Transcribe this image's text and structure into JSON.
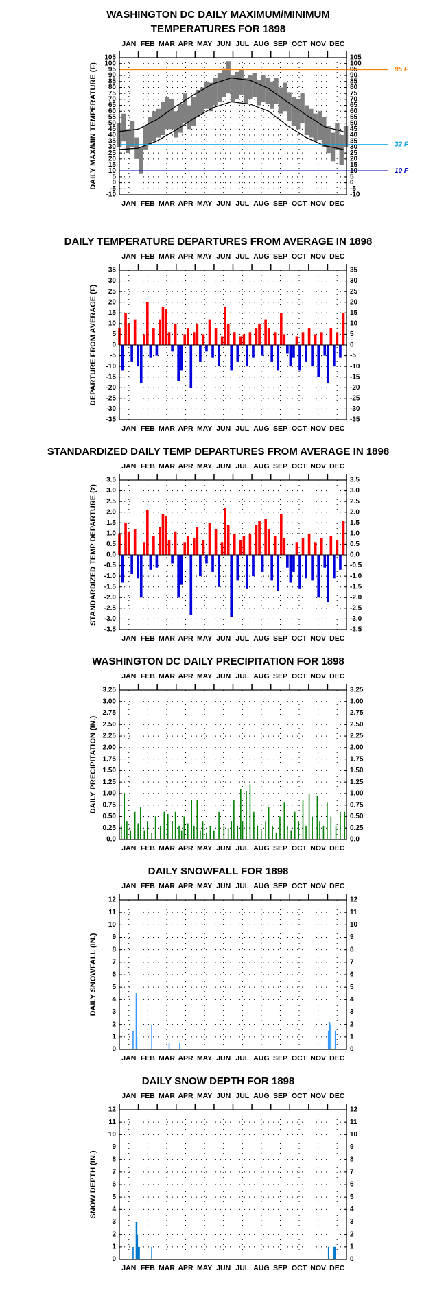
{
  "chart_data": [
    {
      "type": "minmax",
      "title": [
        "WASHINGTON DC DAILY MAXIMUM/MINIMUM",
        "TEMPERATURES FOR 1898"
      ],
      "y_label": "DAILY MAX/MIN TEMPERATURE (F)",
      "categories": [
        "JAN",
        "FEB",
        "MAR",
        "APR",
        "MAY",
        "JUN",
        "JUL",
        "AUG",
        "SEP",
        "OCT",
        "NOV",
        "DEC"
      ],
      "xlim": [
        0,
        365
      ],
      "ylim": [
        -10,
        105
      ],
      "yticks": [
        -10,
        -5,
        0,
        5,
        10,
        15,
        20,
        25,
        30,
        35,
        40,
        45,
        50,
        55,
        60,
        65,
        70,
        75,
        80,
        85,
        90,
        95,
        100,
        105
      ],
      "x": [
        0,
        7,
        14,
        21,
        28,
        35,
        42,
        49,
        56,
        63,
        70,
        77,
        84,
        91,
        98,
        105,
        112,
        119,
        126,
        133,
        140,
        147,
        154,
        161,
        168,
        175,
        182,
        189,
        196,
        203,
        210,
        217,
        224,
        231,
        238,
        245,
        252,
        259,
        266,
        273,
        280,
        287,
        294,
        301,
        308,
        315,
        322,
        329,
        336,
        343,
        350,
        357,
        364
      ],
      "high": [
        50,
        58,
        45,
        52,
        38,
        30,
        48,
        55,
        60,
        62,
        68,
        72,
        70,
        60,
        66,
        75,
        65,
        72,
        78,
        80,
        85,
        84,
        88,
        92,
        96,
        102,
        90,
        93,
        95,
        88,
        90,
        92,
        86,
        90,
        88,
        85,
        88,
        80,
        84,
        76,
        72,
        70,
        75,
        65,
        62,
        58,
        60,
        55,
        48,
        42,
        50,
        40,
        48
      ],
      "low": [
        30,
        35,
        25,
        30,
        20,
        8,
        28,
        32,
        35,
        38,
        40,
        45,
        45,
        38,
        42,
        50,
        45,
        48,
        55,
        58,
        62,
        60,
        65,
        68,
        72,
        75,
        68,
        70,
        74,
        66,
        70,
        72,
        65,
        68,
        66,
        62,
        66,
        58,
        60,
        52,
        48,
        45,
        50,
        40,
        38,
        35,
        36,
        30,
        25,
        18,
        28,
        15,
        30
      ],
      "color": "#808080",
      "normal_x": [
        0,
        30,
        60,
        90,
        120,
        150,
        180,
        210,
        240,
        270,
        300,
        330,
        360
      ],
      "normal_high": [
        43,
        45,
        53,
        64,
        74,
        83,
        88,
        86,
        79,
        68,
        57,
        47,
        43
      ],
      "normal_low": [
        28,
        29,
        35,
        44,
        54,
        63,
        68,
        66,
        60,
        48,
        38,
        31,
        28
      ],
      "normal_color": "#000000",
      "reference_lines": [
        {
          "value": 95,
          "label": "95 F",
          "color": "#ff8000"
        },
        {
          "value": 32,
          "label": "32 F",
          "color": "#00a0e0"
        },
        {
          "value": 10,
          "label": "10 F",
          "color": "#0000c0"
        }
      ],
      "grid": true
    },
    {
      "type": "bar",
      "title": [
        "DAILY TEMPERATURE DEPARTURES FROM AVERAGE IN 1898"
      ],
      "y_label": "DEPARTURE FROM AVERAGE (F)",
      "categories": [
        "JAN",
        "FEB",
        "MAR",
        "APR",
        "MAY",
        "JUN",
        "JUL",
        "AUG",
        "SEP",
        "OCT",
        "NOV",
        "DEC"
      ],
      "xlim": [
        0,
        365
      ],
      "ylim": [
        -35,
        35
      ],
      "yticks": [
        -35,
        -30,
        -25,
        -20,
        -15,
        -10,
        -5,
        0,
        5,
        10,
        15,
        20,
        25,
        30,
        35
      ],
      "x": [
        0,
        5,
        10,
        15,
        20,
        25,
        30,
        35,
        40,
        45,
        50,
        55,
        60,
        65,
        70,
        75,
        80,
        85,
        90,
        95,
        100,
        105,
        110,
        115,
        120,
        125,
        130,
        135,
        140,
        145,
        150,
        155,
        160,
        165,
        170,
        175,
        180,
        185,
        190,
        195,
        200,
        205,
        210,
        215,
        220,
        225,
        230,
        235,
        240,
        245,
        250,
        255,
        260,
        265,
        270,
        275,
        280,
        285,
        290,
        295,
        300,
        305,
        310,
        315,
        320,
        325,
        330,
        335,
        340,
        345,
        350,
        355,
        360
      ],
      "values": [
        8,
        -12,
        15,
        10,
        -8,
        12,
        -10,
        -18,
        5,
        20,
        -6,
        8,
        -5,
        12,
        18,
        17,
        6,
        -3,
        10,
        -17,
        -12,
        5,
        8,
        -20,
        6,
        10,
        -8,
        5,
        -3,
        12,
        -6,
        8,
        -10,
        4,
        18,
        10,
        -12,
        6,
        -8,
        4,
        5,
        -10,
        6,
        -6,
        8,
        10,
        -5,
        12,
        8,
        -8,
        6,
        -12,
        15,
        5,
        -4,
        -10,
        -6,
        4,
        -12,
        6,
        -8,
        8,
        -10,
        5,
        -15,
        6,
        -5,
        -18,
        8,
        -10,
        6,
        -6,
        15
      ],
      "pos_color": "#ff0000",
      "neg_color": "#0000dd",
      "grid": true
    },
    {
      "type": "bar",
      "title": [
        "STANDARDIZED DAILY TEMP DEPARTURES FROM AVERAGE IN 1898"
      ],
      "y_label": "STANDARDIZED TEMP DEPARTURE (z)",
      "categories": [
        "JAN",
        "FEB",
        "MAR",
        "APR",
        "MAY",
        "JUN",
        "JUL",
        "AUG",
        "SEP",
        "OCT",
        "NOV",
        "DEC"
      ],
      "xlim": [
        0,
        365
      ],
      "ylim": [
        -3.5,
        3.5
      ],
      "yticks": [
        -3.5,
        {
          "value": -3,
          "label": "-3.0"
        },
        -2.5,
        {
          "value": -2,
          "label": "-2.0"
        },
        -1.5,
        {
          "value": -1,
          "label": "-1.0"
        },
        -0.5,
        {
          "value": 0,
          "label": "0.0"
        },
        0.5,
        {
          "value": 1,
          "label": "1.0"
        },
        1.5,
        {
          "value": 2,
          "label": "2.0"
        },
        2.5,
        {
          "value": 3,
          "label": "3.0"
        },
        3.5
      ],
      "x": [
        0,
        5,
        10,
        15,
        20,
        25,
        30,
        35,
        40,
        45,
        50,
        55,
        60,
        65,
        70,
        75,
        80,
        85,
        90,
        95,
        100,
        105,
        110,
        115,
        120,
        125,
        130,
        135,
        140,
        145,
        150,
        155,
        160,
        165,
        170,
        175,
        180,
        185,
        190,
        195,
        200,
        205,
        210,
        215,
        220,
        225,
        230,
        235,
        240,
        245,
        250,
        255,
        260,
        265,
        270,
        275,
        280,
        285,
        290,
        295,
        300,
        305,
        310,
        315,
        320,
        325,
        330,
        335,
        340,
        345,
        350,
        355,
        360
      ],
      "values": [
        1.0,
        -1.3,
        1.5,
        1.1,
        -0.9,
        1.2,
        -1.1,
        -2.0,
        0.6,
        2.1,
        -0.7,
        0.9,
        -0.6,
        1.3,
        1.9,
        1.8,
        0.7,
        -0.4,
        1.1,
        -2.0,
        -1.4,
        0.6,
        0.9,
        -2.8,
        0.8,
        1.3,
        -1.0,
        0.7,
        -0.4,
        1.5,
        -0.8,
        1.2,
        -1.5,
        0.6,
        2.2,
        1.4,
        -2.9,
        1.0,
        -1.2,
        0.7,
        0.9,
        -1.6,
        1.0,
        -1.0,
        1.4,
        1.6,
        -0.8,
        1.7,
        1.2,
        -1.2,
        0.9,
        -1.7,
        1.9,
        0.8,
        -0.6,
        -1.3,
        -0.8,
        0.6,
        -1.6,
        0.8,
        -1.1,
        1.0,
        -1.2,
        0.6,
        -2.0,
        0.8,
        -0.6,
        -2.2,
        0.9,
        -1.1,
        0.7,
        -0.7,
        1.6
      ],
      "pos_color": "#ff0000",
      "neg_color": "#0000dd",
      "grid": true
    },
    {
      "type": "spike",
      "title": [
        "WASHINGTON DC DAILY PRECIPITATION FOR 1898"
      ],
      "y_label": "DAILY PRECIPITATION (IN.)",
      "categories": [
        "JAN",
        "FEB",
        "MAR",
        "APR",
        "MAY",
        "JUN",
        "JUL",
        "AUG",
        "SEP",
        "OCT",
        "NOV",
        "DEC"
      ],
      "xlim": [
        0,
        365
      ],
      "ylim": [
        0,
        3.25
      ],
      "yticks": [
        {
          "value": 0,
          "label": "0.0"
        },
        0.25,
        {
          "value": 0.5,
          "label": "0.50"
        },
        0.75,
        {
          "value": 1,
          "label": "1.00"
        },
        1.25,
        {
          "value": 1.5,
          "label": "1.50"
        },
        1.75,
        {
          "value": 2,
          "label": "2.00"
        },
        2.25,
        {
          "value": 2.5,
          "label": "2.50"
        },
        2.75,
        {
          "value": 3,
          "label": "3.00"
        },
        3.25
      ],
      "x": [
        3,
        8,
        12,
        18,
        25,
        30,
        34,
        40,
        45,
        52,
        58,
        66,
        72,
        78,
        85,
        90,
        96,
        100,
        104,
        110,
        116,
        120,
        125,
        130,
        134,
        140,
        146,
        152,
        160,
        168,
        175,
        180,
        184,
        190,
        195,
        198,
        204,
        210,
        216,
        222,
        228,
        235,
        240,
        246,
        252,
        258,
        265,
        270,
        276,
        282,
        288,
        295,
        300,
        305,
        310,
        318,
        322,
        328,
        334,
        340,
        348,
        355,
        362
      ],
      "values": [
        0.3,
        1.0,
        0.4,
        0.2,
        0.6,
        0.35,
        0.7,
        0.2,
        0.4,
        0.15,
        0.5,
        0.3,
        0.6,
        0.55,
        0.4,
        0.6,
        0.3,
        0.2,
        0.5,
        0.35,
        0.85,
        0.3,
        0.85,
        0.2,
        0.4,
        0.15,
        0.3,
        0.2,
        0.6,
        0.3,
        0.25,
        0.4,
        0.85,
        0.3,
        1.1,
        0.4,
        1.05,
        1.2,
        0.6,
        0.3,
        0.2,
        0.4,
        0.7,
        0.3,
        0.15,
        0.5,
        0.8,
        0.3,
        0.2,
        0.6,
        0.4,
        0.85,
        0.3,
        1.0,
        0.5,
        0.95,
        0.4,
        0.3,
        0.8,
        0.5,
        0.3,
        0.6,
        0.6
      ],
      "color": "#008000",
      "grid": true
    },
    {
      "type": "spike",
      "title": [
        "DAILY SNOWFALL FOR 1898"
      ],
      "y_label": "DAILY SNOWFALL (IN.)",
      "categories": [
        "JAN",
        "FEB",
        "MAR",
        "APR",
        "MAY",
        "JUN",
        "JUL",
        "AUG",
        "SEP",
        "OCT",
        "NOV",
        "DEC"
      ],
      "xlim": [
        0,
        365
      ],
      "ylim": [
        0,
        12
      ],
      "yticks": [
        0,
        1,
        2,
        3,
        4,
        5,
        6,
        7,
        8,
        9,
        10,
        11,
        12
      ],
      "x": [
        22,
        27,
        28,
        52,
        80,
        97,
        336,
        338,
        340,
        347
      ],
      "values": [
        1.5,
        4.5,
        1.0,
        2.0,
        0.5,
        0.5,
        1.5,
        2.2,
        2.0,
        1.5
      ],
      "color": "#3399ff",
      "grid": true
    },
    {
      "type": "spike",
      "title": [
        "DAILY SNOW DEPTH FOR 1898"
      ],
      "y_label": "SNOW DEPTH (IN.)",
      "categories": [
        "JAN",
        "FEB",
        "MAR",
        "APR",
        "MAY",
        "JUN",
        "JUL",
        "AUG",
        "SEP",
        "OCT",
        "NOV",
        "DEC"
      ],
      "xlim": [
        0,
        365
      ],
      "ylim": [
        0,
        12
      ],
      "yticks": [
        0,
        1,
        2,
        3,
        4,
        5,
        6,
        7,
        8,
        9,
        10,
        11,
        12
      ],
      "x": [
        22,
        27,
        28,
        29,
        30,
        31,
        32,
        52,
        336,
        345,
        346,
        347
      ],
      "values": [
        1,
        3,
        3,
        2,
        1,
        1,
        1,
        1,
        1,
        1,
        1,
        1
      ],
      "color": "#0077cc",
      "grid": true
    }
  ]
}
